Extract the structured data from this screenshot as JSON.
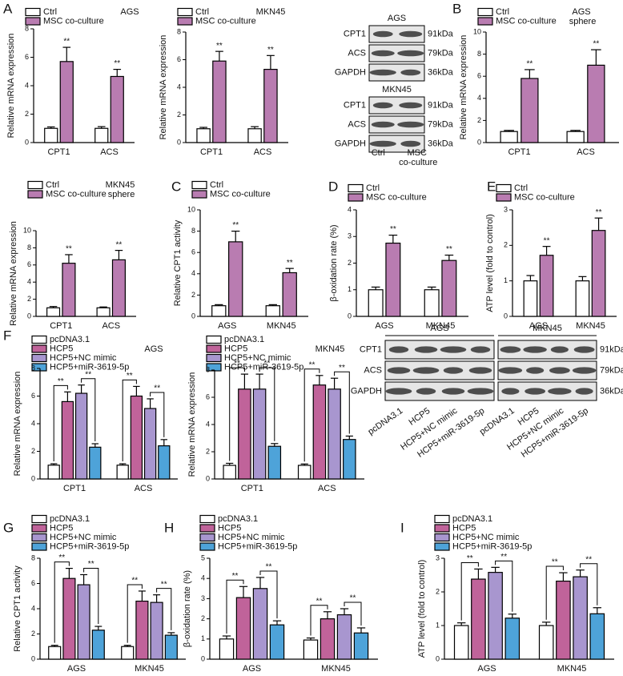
{
  "chart_data": [
    {
      "type": "bar",
      "panel": "A",
      "title": "AGS",
      "y_label": "Relative mRNA expression",
      "categories": [
        "CPT1",
        "ACS"
      ],
      "series": [
        {
          "name": "Ctrl",
          "color": "#ffffff",
          "values": [
            1,
            1
          ],
          "errors": [
            0.1,
            0.12
          ]
        },
        {
          "name": "MSC co-culture",
          "color": "#b97cb1",
          "values": [
            5.7,
            4.65
          ],
          "errors": [
            1.0,
            0.5
          ],
          "annotations": [
            "**",
            "**"
          ]
        }
      ],
      "ylim": [
        0,
        8
      ],
      "yticks": [
        0,
        2,
        4,
        6,
        8
      ],
      "annotation_style": "star"
    },
    {
      "type": "bar",
      "title": "MKN45",
      "y_label": "Relative mRNA expression",
      "categories": [
        "CPT1",
        "ACS"
      ],
      "series": [
        {
          "name": "Ctrl",
          "color": "#ffffff",
          "values": [
            1,
            1
          ],
          "errors": [
            0.1,
            0.15
          ]
        },
        {
          "name": "MSC co-culture",
          "color": "#b97cb1",
          "values": [
            5.9,
            5.3
          ],
          "errors": [
            0.7,
            1.0
          ],
          "annotations": [
            "**",
            "**"
          ]
        }
      ],
      "ylim": [
        0,
        8
      ],
      "yticks": [
        0,
        2,
        4,
        6,
        8
      ],
      "annotation_style": "star"
    },
    {
      "type": "bar",
      "panel": "B",
      "title": "AGS sphere",
      "y_label": "Relative mRNA expression",
      "categories": [
        "CPT1",
        "ACS"
      ],
      "series": [
        {
          "name": "Ctrl",
          "color": "#ffffff",
          "values": [
            1,
            1
          ],
          "errors": [
            0.1,
            0.1
          ]
        },
        {
          "name": "MSC co-culture",
          "color": "#b97cb1",
          "values": [
            5.8,
            7.0
          ],
          "errors": [
            0.8,
            1.4
          ],
          "annotations": [
            "**",
            "**"
          ]
        }
      ],
      "ylim": [
        0,
        10
      ],
      "yticks": [
        0,
        2,
        4,
        6,
        8,
        10
      ],
      "annotation_style": "star"
    },
    {
      "type": "bar",
      "title": "MKN45 sphere",
      "y_label": "Relative mRNA expression",
      "categories": [
        "CPT1",
        "ACS"
      ],
      "series": [
        {
          "name": "Ctrl",
          "color": "#ffffff",
          "values": [
            1,
            1
          ],
          "errors": [
            0.15,
            0.1
          ]
        },
        {
          "name": "MSC co-culture",
          "color": "#b97cb1",
          "values": [
            6.2,
            6.6
          ],
          "errors": [
            1.0,
            1.1
          ],
          "annotations": [
            "**",
            "**"
          ]
        }
      ],
      "ylim": [
        0,
        10
      ],
      "yticks": [
        0,
        2,
        4,
        6,
        8,
        10
      ],
      "annotation_style": "star"
    },
    {
      "type": "bar",
      "panel": "C",
      "y_label": "Relative CPT1 activity",
      "categories": [
        "AGS",
        "MKN45"
      ],
      "series": [
        {
          "name": "Ctrl",
          "color": "#ffffff",
          "values": [
            1,
            1
          ],
          "errors": [
            0.1,
            0.1
          ]
        },
        {
          "name": "MSC co-culture",
          "color": "#b97cb1",
          "values": [
            7.0,
            4.1
          ],
          "errors": [
            1.0,
            0.4
          ],
          "annotations": [
            "**",
            "**"
          ]
        }
      ],
      "ylim": [
        0,
        10
      ],
      "yticks": [
        0,
        2,
        4,
        6,
        8,
        10
      ],
      "annotation_style": "star"
    },
    {
      "type": "bar",
      "panel": "D",
      "y_label": "β-oxidation rate (%)",
      "categories": [
        "AGS",
        "MKN45"
      ],
      "series": [
        {
          "name": "Ctrl",
          "color": "#ffffff",
          "values": [
            1,
            1
          ],
          "errors": [
            0.1,
            0.1
          ]
        },
        {
          "name": "MSC co-culture",
          "color": "#b97cb1",
          "values": [
            2.75,
            2.1
          ],
          "errors": [
            0.3,
            0.2
          ],
          "annotations": [
            "**",
            "**"
          ]
        }
      ],
      "ylim": [
        0,
        4
      ],
      "yticks": [
        0,
        1,
        2,
        3,
        4
      ],
      "annotation_style": "star"
    },
    {
      "type": "bar",
      "panel": "E",
      "y_label": "ATP level (fold to control)",
      "categories": [
        "AGS",
        "MKN45"
      ],
      "series": [
        {
          "name": "Ctrl",
          "color": "#ffffff",
          "values": [
            1,
            1
          ],
          "errors": [
            0.15,
            0.12
          ]
        },
        {
          "name": "MSC co-culture",
          "color": "#b97cb1",
          "values": [
            1.72,
            2.42
          ],
          "errors": [
            0.25,
            0.35
          ],
          "annotations": [
            "**",
            "**"
          ]
        }
      ],
      "ylim": [
        0,
        3
      ],
      "yticks": [
        0,
        1,
        2,
        3
      ],
      "annotation_style": "star"
    },
    {
      "type": "bar",
      "panel": "F",
      "title": "AGS",
      "y_label": "Relative mRNA expression",
      "categories": [
        "CPT1",
        "ACS"
      ],
      "series": [
        {
          "name": "pcDNA3.1",
          "color": "#ffffff",
          "values": [
            1,
            1
          ],
          "errors": [
            0.1,
            0.1
          ]
        },
        {
          "name": "HCP5",
          "color": "#c0639a",
          "values": [
            5.6,
            6.0
          ],
          "errors": [
            0.7,
            0.7
          ],
          "annotations": [
            "**",
            "**"
          ]
        },
        {
          "name": "HCP5+NC mimic",
          "color": "#a896cf",
          "values": [
            6.2,
            5.1
          ],
          "errors": [
            0.6,
            0.7
          ]
        },
        {
          "name": "HCP5+miR-3619-5p",
          "color": "#4ea3d9",
          "values": [
            2.3,
            2.4
          ],
          "errors": [
            0.25,
            0.45
          ],
          "annotations": [
            "**",
            "**"
          ]
        }
      ],
      "ylim": [
        0,
        8
      ],
      "yticks": [
        0,
        2,
        4,
        6,
        8
      ],
      "annotation_style": "bracket"
    },
    {
      "type": "bar",
      "title": "MKN45",
      "y_label": "Relative mRNA expression",
      "categories": [
        "CPT1",
        "ACS"
      ],
      "series": [
        {
          "name": "pcDNA3.1",
          "color": "#ffffff",
          "values": [
            1,
            1
          ],
          "errors": [
            0.15,
            0.1
          ]
        },
        {
          "name": "HCP5",
          "color": "#c0639a",
          "values": [
            6.6,
            6.9
          ],
          "errors": [
            1.1,
            0.7
          ],
          "annotations": [
            "**",
            "**"
          ]
        },
        {
          "name": "HCP5+NC mimic",
          "color": "#a896cf",
          "values": [
            6.6,
            6.6
          ],
          "errors": [
            1.1,
            0.8
          ]
        },
        {
          "name": "HCP5+miR-3619-5p",
          "color": "#4ea3d9",
          "values": [
            2.4,
            2.9
          ],
          "errors": [
            0.2,
            0.25
          ],
          "annotations": [
            "**",
            "**"
          ]
        }
      ],
      "ylim": [
        0,
        8
      ],
      "yticks": [
        0,
        2,
        4,
        6,
        8
      ],
      "annotation_style": "bracket"
    },
    {
      "type": "bar",
      "panel": "G",
      "y_label": "Relative CPT1 activity",
      "categories": [
        "AGS",
        "MKN45"
      ],
      "series": [
        {
          "name": "pcDNA3.1",
          "color": "#ffffff",
          "values": [
            1,
            1
          ],
          "errors": [
            0.1,
            0.1
          ]
        },
        {
          "name": "HCP5",
          "color": "#c0639a",
          "values": [
            6.4,
            4.6
          ],
          "errors": [
            0.8,
            0.8
          ],
          "annotations": [
            "**",
            "**"
          ]
        },
        {
          "name": "HCP5+NC mimic",
          "color": "#a896cf",
          "values": [
            5.9,
            4.5
          ],
          "errors": [
            0.8,
            0.6
          ]
        },
        {
          "name": "HCP5+miR-3619-5p",
          "color": "#4ea3d9",
          "values": [
            2.3,
            1.9
          ],
          "errors": [
            0.3,
            0.2
          ],
          "annotations": [
            "**",
            "**"
          ]
        }
      ],
      "ylim": [
        0,
        8
      ],
      "yticks": [
        0,
        2,
        4,
        6,
        8
      ],
      "annotation_style": "bracket"
    },
    {
      "type": "bar",
      "panel": "H",
      "y_label": "β-oxidation rate (%)",
      "categories": [
        "AGS",
        "MKN45"
      ],
      "series": [
        {
          "name": "pcDNA3.1",
          "color": "#ffffff",
          "values": [
            1.0,
            0.95
          ],
          "errors": [
            0.15,
            0.1
          ]
        },
        {
          "name": "HCP5",
          "color": "#c0639a",
          "values": [
            3.05,
            2.0
          ],
          "errors": [
            0.55,
            0.35
          ],
          "annotations": [
            "**",
            "**"
          ]
        },
        {
          "name": "HCP5+NC mimic",
          "color": "#a896cf",
          "values": [
            3.5,
            2.2
          ],
          "errors": [
            0.55,
            0.3
          ]
        },
        {
          "name": "HCP5+miR-3619-5p",
          "color": "#4ea3d9",
          "values": [
            1.7,
            1.3
          ],
          "errors": [
            0.2,
            0.25
          ],
          "annotations": [
            "**",
            "**"
          ]
        }
      ],
      "ylim": [
        0,
        5
      ],
      "yticks": [
        0,
        1,
        2,
        3,
        4,
        5
      ],
      "annotation_style": "bracket"
    },
    {
      "type": "bar",
      "panel": "I",
      "y_label": "ATP level (fold to control)",
      "categories": [
        "AGS",
        "MKN45"
      ],
      "series": [
        {
          "name": "pcDNA3.1",
          "color": "#ffffff",
          "values": [
            1.0,
            1.0
          ],
          "errors": [
            0.08,
            0.1
          ]
        },
        {
          "name": "HCP5",
          "color": "#c0639a",
          "values": [
            2.38,
            2.32
          ],
          "errors": [
            0.3,
            0.25
          ],
          "annotations": [
            "**",
            "**"
          ]
        },
        {
          "name": "HCP5+NC mimic",
          "color": "#a896cf",
          "values": [
            2.58,
            2.45
          ],
          "errors": [
            0.15,
            0.2
          ]
        },
        {
          "name": "HCP5+miR-3619-5p",
          "color": "#4ea3d9",
          "values": [
            1.22,
            1.35
          ],
          "errors": [
            0.12,
            0.18
          ],
          "annotations": [
            "**",
            "**"
          ]
        }
      ],
      "ylim": [
        0,
        3
      ],
      "yticks": [
        0,
        1,
        2,
        3
      ],
      "annotation_style": "bracket"
    }
  ],
  "blots": [
    {
      "sections": [
        {
          "title": "AGS",
          "rows": [
            {
              "name": "CPT1",
              "size": "91kDa"
            },
            {
              "name": "ACS",
              "size": "79kDa"
            },
            {
              "name": "GAPDH",
              "size": "36kDa"
            }
          ]
        },
        {
          "title": "MKN45",
          "rows": [
            {
              "name": "CPT1",
              "size": "91kDa"
            },
            {
              "name": "ACS",
              "size": "79kDa"
            },
            {
              "name": "GAPDH",
              "size": "36kDa"
            }
          ]
        }
      ],
      "lanes": [
        "Ctrl",
        "MSC co-culture"
      ]
    },
    {
      "rows": [
        {
          "name": "CPT1",
          "size": "91kDa"
        },
        {
          "name": "ACS",
          "size": "79kDa"
        },
        {
          "name": "GAPDH",
          "size": "36kDa"
        }
      ],
      "groups": [
        {
          "title": "AGS",
          "lanes": [
            "pcDNA3.1",
            "HCP5",
            "HCP5+NC mimic",
            "HCP5+miR-3619-5p"
          ]
        },
        {
          "title": "MKN45",
          "lanes": [
            "pcDNA3.1",
            "HCP5",
            "HCP5+NC mimic",
            "HCP5+miR-3619-5p"
          ]
        }
      ]
    }
  ]
}
